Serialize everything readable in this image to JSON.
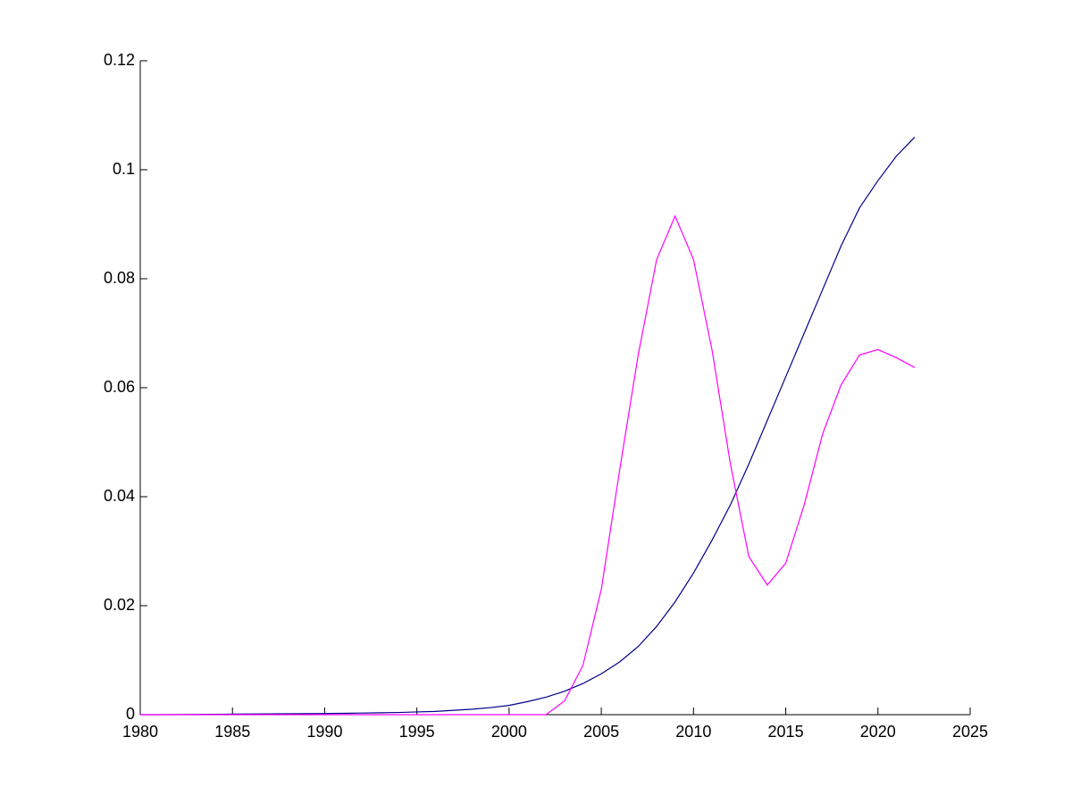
{
  "chart_data": {
    "type": "line",
    "x": [
      1980,
      1981,
      1982,
      1983,
      1984,
      1985,
      1986,
      1987,
      1988,
      1989,
      1990,
      1991,
      1992,
      1993,
      1994,
      1995,
      1996,
      1997,
      1998,
      1999,
      2000,
      2001,
      2002,
      2003,
      2004,
      2005,
      2006,
      2007,
      2008,
      2009,
      2010,
      2011,
      2012,
      2013,
      2014,
      2015,
      2016,
      2017,
      2018,
      2019,
      2020,
      2021,
      2022
    ],
    "series": [
      {
        "color": "#00008b",
        "values": [
          0,
          0,
          2e-05,
          4e-05,
          6e-05,
          0.0001,
          0.00012,
          0.00014,
          0.00016,
          0.00018,
          0.0002,
          0.00025,
          0.0003,
          0.00035,
          0.0004,
          0.0005,
          0.0006,
          0.0008,
          0.001,
          0.0013,
          0.0017,
          0.0024,
          0.0032,
          0.0043,
          0.0057,
          0.0075,
          0.0097,
          0.0125,
          0.0162,
          0.0207,
          0.026,
          0.032,
          0.0385,
          0.046,
          0.054,
          0.062,
          0.07,
          0.078,
          0.086,
          0.093,
          0.098,
          0.1025,
          0.106
        ]
      },
      {
        "color": "#ff00ff",
        "values": [
          0,
          0,
          0,
          0,
          0,
          0,
          0,
          0,
          0,
          0,
          0,
          0,
          0,
          0,
          0,
          0,
          0,
          0,
          0,
          0,
          0,
          0,
          0,
          0.0025,
          0.009,
          0.023,
          0.045,
          0.066,
          0.0835,
          0.0915,
          0.0835,
          0.067,
          0.046,
          0.029,
          0.0238,
          0.0278,
          0.0385,
          0.0515,
          0.0605,
          0.066,
          0.067,
          0.0655,
          0.0637
        ]
      }
    ],
    "xlim": [
      1980,
      2025
    ],
    "xticks": [
      1980,
      1985,
      1990,
      1995,
      2000,
      2005,
      2010,
      2015,
      2020,
      2025
    ],
    "ylim": [
      0,
      0.12
    ],
    "yticks": [
      0,
      0.02,
      0.04,
      0.06,
      0.08,
      0.1,
      0.12
    ]
  }
}
